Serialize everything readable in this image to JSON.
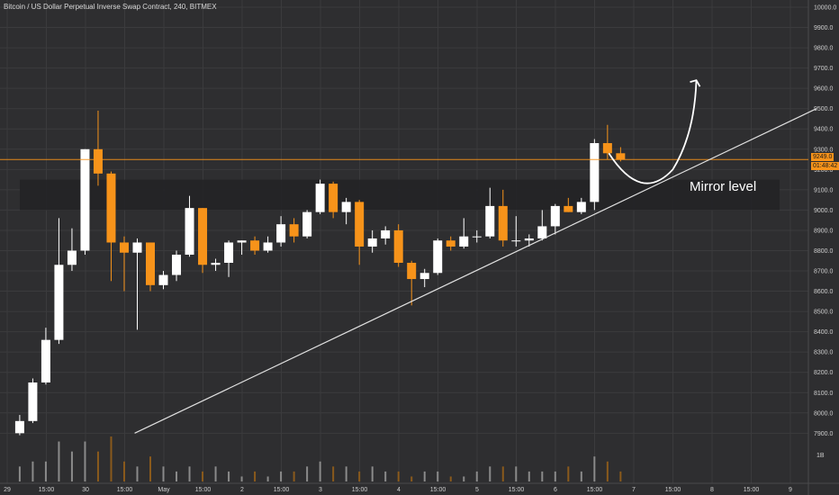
{
  "title": "Bitcoin / US Dollar Perpetual Inverse Swap Contract, 240, BITMEX",
  "last_price_tag": "9249.0",
  "countdown_tag": "01:48:42",
  "zone_label": "Mirror level",
  "colors": {
    "background": "#2e2e30",
    "grid": "#3b3b3d",
    "up_candle": "#ffffff",
    "down_candle": "#f7931a",
    "volume_up": "#8a8a8a",
    "volume_down": "#8a5a1c",
    "axis_text": "#cfcfcf",
    "price_line": "#f7931a",
    "zone_fill": "#222224",
    "trendline": "#e0e0e0",
    "projection_arrow": "#ffffff"
  },
  "chart_data": {
    "type": "candlestick",
    "symbol": "XBTUSD",
    "exchange": "BITMEX",
    "timeframe": "240",
    "y_axis": {
      "ylim": [
        7850,
        10000
      ],
      "tick_labels": [
        "10000.0",
        "9900.0",
        "9800.0",
        "9700.0",
        "9600.0",
        "9500.0",
        "9400.0",
        "9300.0",
        "9200.0",
        "9100.0",
        "9000.0",
        "8900.0",
        "8800.0",
        "8700.0",
        "8600.0",
        "8500.0",
        "8400.0",
        "8300.0",
        "8200.0",
        "8100.0",
        "8000.0",
        "7900.0"
      ],
      "volume_tick_label": "1B"
    },
    "x_axis": {
      "tick_labels": [
        "29",
        "15:00",
        "30",
        "15:00",
        "May",
        "15:00",
        "2",
        "15:00",
        "3",
        "15:00",
        "4",
        "15:00",
        "5",
        "15:00",
        "6",
        "15:00",
        "7",
        "15:00",
        "8",
        "15:00",
        "9"
      ]
    },
    "candles": [
      {
        "o": 7900,
        "h": 7990,
        "l": 7890,
        "c": 7960
      },
      {
        "o": 7960,
        "h": 8170,
        "l": 7950,
        "c": 8150
      },
      {
        "o": 8150,
        "h": 8420,
        "l": 8140,
        "c": 8360
      },
      {
        "o": 8360,
        "h": 8960,
        "l": 8340,
        "c": 8730
      },
      {
        "o": 8730,
        "h": 8910,
        "l": 8700,
        "c": 8800
      },
      {
        "o": 8800,
        "h": 9300,
        "l": 8780,
        "c": 9300
      },
      {
        "o": 9300,
        "h": 9490,
        "l": 9120,
        "c": 9180
      },
      {
        "o": 9180,
        "h": 9190,
        "l": 8650,
        "c": 8840
      },
      {
        "o": 8840,
        "h": 8870,
        "l": 8600,
        "c": 8790
      },
      {
        "o": 8790,
        "h": 8860,
        "l": 8410,
        "c": 8840
      },
      {
        "o": 8840,
        "h": 8840,
        "l": 8600,
        "c": 8630
      },
      {
        "o": 8630,
        "h": 8700,
        "l": 8610,
        "c": 8680
      },
      {
        "o": 8680,
        "h": 8800,
        "l": 8650,
        "c": 8780
      },
      {
        "o": 8780,
        "h": 9070,
        "l": 8770,
        "c": 9010
      },
      {
        "o": 9010,
        "h": 9010,
        "l": 8690,
        "c": 8730
      },
      {
        "o": 8730,
        "h": 8760,
        "l": 8700,
        "c": 8740
      },
      {
        "o": 8740,
        "h": 8850,
        "l": 8670,
        "c": 8840
      },
      {
        "o": 8840,
        "h": 8850,
        "l": 8780,
        "c": 8850
      },
      {
        "o": 8850,
        "h": 8870,
        "l": 8780,
        "c": 8800
      },
      {
        "o": 8800,
        "h": 8870,
        "l": 8790,
        "c": 8840
      },
      {
        "o": 8840,
        "h": 8970,
        "l": 8820,
        "c": 8930
      },
      {
        "o": 8930,
        "h": 8960,
        "l": 8840,
        "c": 8870
      },
      {
        "o": 8870,
        "h": 9000,
        "l": 8860,
        "c": 8990
      },
      {
        "o": 8990,
        "h": 9150,
        "l": 8980,
        "c": 9130
      },
      {
        "o": 9130,
        "h": 9140,
        "l": 8960,
        "c": 8990
      },
      {
        "o": 8990,
        "h": 9060,
        "l": 8930,
        "c": 9040
      },
      {
        "o": 9040,
        "h": 9050,
        "l": 8730,
        "c": 8820
      },
      {
        "o": 8820,
        "h": 8900,
        "l": 8790,
        "c": 8860
      },
      {
        "o": 8860,
        "h": 8920,
        "l": 8830,
        "c": 8900
      },
      {
        "o": 8900,
        "h": 8930,
        "l": 8720,
        "c": 8740
      },
      {
        "o": 8740,
        "h": 8750,
        "l": 8530,
        "c": 8660
      },
      {
        "o": 8660,
        "h": 8710,
        "l": 8620,
        "c": 8690
      },
      {
        "o": 8690,
        "h": 8860,
        "l": 8680,
        "c": 8850
      },
      {
        "o": 8850,
        "h": 8870,
        "l": 8800,
        "c": 8820
      },
      {
        "o": 8820,
        "h": 8960,
        "l": 8810,
        "c": 8870
      },
      {
        "o": 8870,
        "h": 8900,
        "l": 8840,
        "c": 8870
      },
      {
        "o": 8870,
        "h": 9110,
        "l": 8860,
        "c": 9020
      },
      {
        "o": 9020,
        "h": 9100,
        "l": 8820,
        "c": 8850
      },
      {
        "o": 8850,
        "h": 8970,
        "l": 8820,
        "c": 8850
      },
      {
        "o": 8850,
        "h": 8880,
        "l": 8820,
        "c": 8860
      },
      {
        "o": 8860,
        "h": 9000,
        "l": 8850,
        "c": 8920
      },
      {
        "o": 8920,
        "h": 9030,
        "l": 8880,
        "c": 9020
      },
      {
        "o": 9020,
        "h": 9060,
        "l": 8990,
        "c": 8990
      },
      {
        "o": 8990,
        "h": 9060,
        "l": 8980,
        "c": 9040
      },
      {
        "o": 9040,
        "h": 9350,
        "l": 9000,
        "c": 9330
      },
      {
        "o": 9330,
        "h": 9420,
        "l": 9250,
        "c": 9280
      },
      {
        "o": 9280,
        "h": 9310,
        "l": 9240,
        "c": 9249
      }
    ],
    "volume": [
      3,
      4,
      4,
      8,
      6,
      8,
      6,
      9,
      4,
      3,
      5,
      3,
      2,
      3,
      2,
      3,
      2,
      1,
      2,
      1,
      2,
      2,
      3,
      4,
      3,
      3,
      2,
      3,
      2,
      2,
      1,
      2,
      2,
      1,
      1,
      2,
      3,
      3,
      3,
      2,
      2,
      2,
      3,
      2,
      5,
      4,
      2
    ],
    "annotations": {
      "last_price": 9249.0,
      "mirror_zone": {
        "low": 9000,
        "high": 9150,
        "label": "Mirror level"
      },
      "trendline": {
        "from_candle": 8.8,
        "from_price": 7900,
        "to_candle": 61,
        "to_price": 9500
      },
      "projection_arrow": {
        "path": [
          [
            45.1,
            9280
          ],
          [
            47.6,
            9120
          ],
          [
            50.0,
            9200
          ],
          [
            51.8,
            9640
          ]
        ]
      }
    }
  }
}
